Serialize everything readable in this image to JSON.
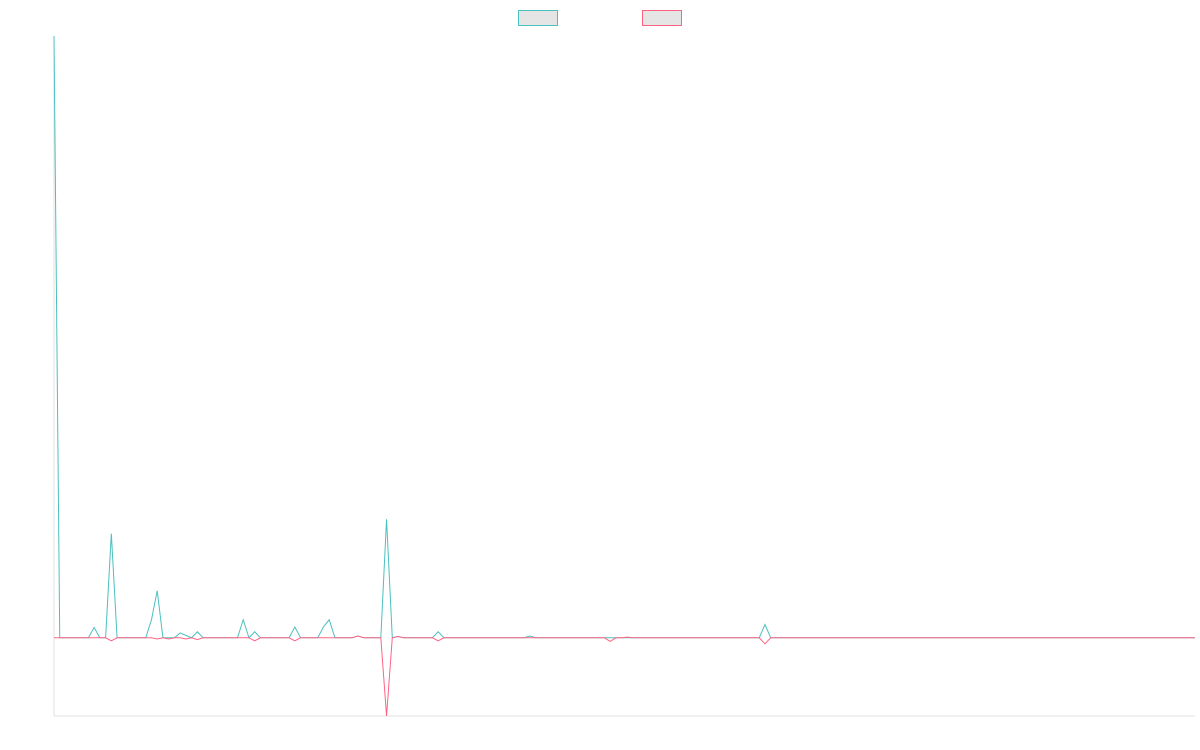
{
  "chart_data": {
    "type": "line",
    "legend": "top",
    "ylim": [
      -13,
      100
    ],
    "series": [
      {
        "color": "#4bc0c0",
        "values": [
          100,
          0,
          0,
          0,
          0,
          0,
          0,
          1.7,
          0,
          0,
          17.3,
          0,
          0,
          0,
          0,
          0,
          0,
          3,
          7.8,
          0,
          0,
          0,
          0.8,
          0.4,
          0,
          1,
          0,
          0,
          0,
          0,
          0,
          0,
          0,
          3,
          0,
          1,
          0,
          0,
          0,
          0,
          0,
          0,
          1.8,
          0,
          0,
          0,
          0,
          1.8,
          3,
          0,
          0,
          0,
          0,
          0.3,
          0,
          0,
          0,
          0,
          19.7,
          0,
          0.2,
          0,
          0,
          0,
          0,
          0,
          0,
          1,
          0,
          0,
          0,
          0,
          0,
          0,
          0,
          0,
          0,
          0,
          0,
          0,
          0,
          0,
          0,
          0.3,
          0,
          0,
          0,
          0,
          0,
          0,
          0,
          0,
          0,
          0,
          0,
          0,
          0,
          0,
          0,
          0,
          0,
          0,
          0,
          0,
          0,
          0,
          0,
          0,
          0,
          0,
          0,
          0,
          0,
          0,
          0,
          0,
          0,
          0,
          0,
          0,
          0,
          0,
          0,
          0,
          2.2,
          0,
          0,
          0,
          0,
          0,
          0,
          0,
          0,
          0,
          0,
          0,
          0,
          0,
          0,
          0,
          0,
          0,
          0,
          0,
          0,
          0,
          0,
          0,
          0,
          0,
          0,
          0,
          0,
          0,
          0,
          0,
          0,
          0,
          0,
          0,
          0,
          0,
          0,
          0,
          0,
          0,
          0,
          0,
          0,
          0,
          0,
          0,
          0,
          0,
          0,
          0,
          0,
          0,
          0,
          0,
          0,
          0,
          0,
          0,
          0,
          0,
          0,
          0,
          0,
          0,
          0,
          0,
          0,
          0,
          0,
          0,
          0,
          0,
          0,
          0
        ]
      },
      {
        "color": "#ff6384",
        "values": [
          0,
          0,
          0,
          0,
          0,
          0,
          0,
          0,
          0,
          0,
          -0.5,
          0,
          0,
          0,
          0,
          0,
          0,
          0,
          -0.2,
          0,
          -0.2,
          0,
          0,
          -0.2,
          0,
          -0.3,
          0,
          0,
          0,
          0,
          0,
          0,
          0,
          0,
          0,
          -0.5,
          0,
          0,
          0,
          0,
          0,
          0,
          -0.5,
          0,
          0,
          0,
          0,
          0,
          0,
          0,
          0,
          0,
          0,
          0.3,
          0,
          0,
          0,
          0,
          -13,
          0,
          0.2,
          0,
          0,
          0,
          0,
          0,
          0,
          -0.5,
          0,
          0,
          0,
          0,
          0,
          0,
          0,
          0,
          0,
          0,
          0,
          0,
          0,
          0,
          0,
          0,
          0,
          0,
          0,
          0,
          0,
          0,
          0,
          0,
          0,
          0,
          0,
          0,
          0,
          -0.6,
          0,
          0,
          0.1,
          0,
          0,
          0,
          0,
          0,
          0,
          0,
          0,
          0,
          0,
          0,
          0,
          0,
          0,
          0,
          0,
          0,
          0,
          0,
          0,
          0,
          0,
          0,
          -1,
          0,
          0,
          0,
          0,
          0,
          0,
          0,
          0,
          0,
          0,
          0,
          0,
          0,
          0,
          0,
          0,
          0,
          0,
          0,
          0,
          0,
          0,
          0,
          0,
          0,
          0,
          0,
          0,
          0,
          0,
          0,
          0,
          0,
          0,
          0,
          0,
          0,
          0,
          0,
          0,
          0,
          0,
          0,
          0,
          0,
          0,
          0,
          0,
          0,
          0,
          0,
          0,
          0,
          0,
          0,
          0,
          0,
          0,
          0,
          0,
          0,
          0,
          0,
          0,
          0,
          0,
          0,
          0,
          0,
          0,
          0,
          0,
          0,
          0,
          0
        ]
      }
    ]
  }
}
